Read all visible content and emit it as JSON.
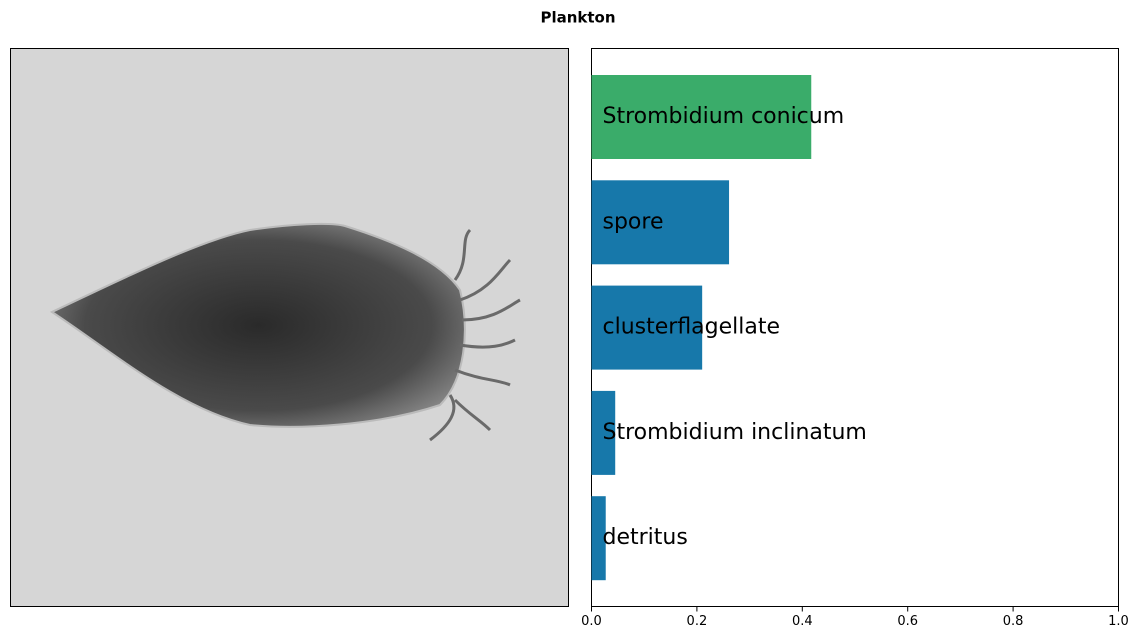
{
  "chart_data": {
    "type": "bar",
    "orientation": "horizontal",
    "title": "Plankton",
    "categories": [
      "Strombidium conicum",
      "spore",
      "clusterflagellate",
      "Strombidium inclinatum",
      "detritus"
    ],
    "values": [
      0.417,
      0.261,
      0.21,
      0.045,
      0.027
    ],
    "colors": [
      "#3aac6a",
      "#1778aa",
      "#1778aa",
      "#1778aa",
      "#1778aa"
    ],
    "xlim": [
      0,
      1
    ],
    "xticks": [
      {
        "value": 0,
        "label": "0.0"
      },
      0.2,
      0.4,
      0.6,
      0.8,
      {
        "value": 1,
        "label": "1.0"
      }
    ]
  }
}
